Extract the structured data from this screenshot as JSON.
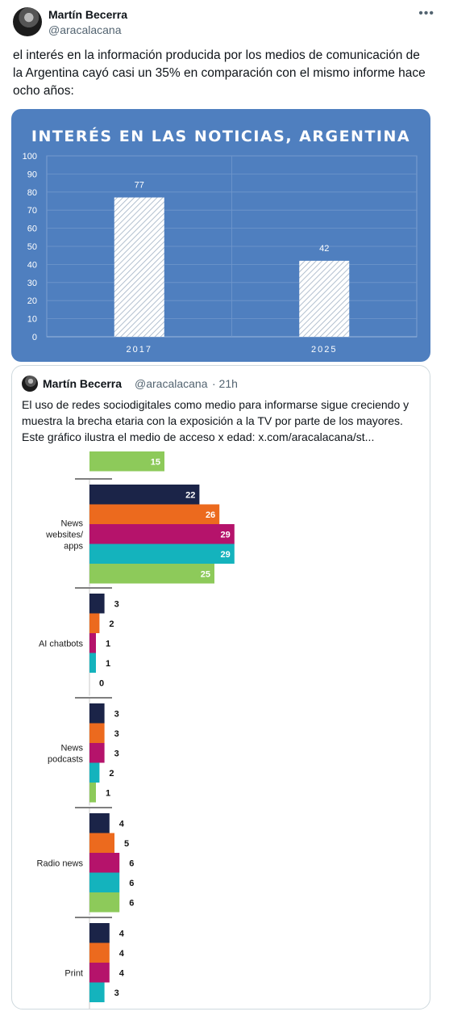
{
  "post": {
    "author_name": "Martín Becerra",
    "author_handle": "@aracalacana",
    "more_icon": "•••",
    "text": "el interés en la información producida por los medios de comunicación de la Argentina cayó casi un 35% en comparación con el mismo informe hace ocho años:"
  },
  "chart_data": {
    "type": "bar",
    "title": "INTERÉS EN LAS NOTICIAS, ARGENTINA",
    "categories": [
      "2017",
      "2025"
    ],
    "values": [
      77,
      42
    ],
    "ylim": [
      0,
      100
    ],
    "yticks": [
      0,
      10,
      20,
      30,
      40,
      50,
      60,
      70,
      80,
      90,
      100
    ],
    "grid": true,
    "colors": {
      "background": "#4f7fbf",
      "bar_fill": "#ffffff",
      "bar_hatch": "#9fb0c4"
    }
  },
  "quote": {
    "author_name": "Martín Becerra",
    "author_handle": "@aracalacana",
    "time": "· 21h",
    "text_lines": [
      "El uso de redes sociodigitales como medio para informarse sigue creciendo y",
      "muestra la brecha etaria con la exposición a la TV por parte de los mayores.",
      "Este gráfico ilustra el medio de acceso x edad:  x.com/aracalacana/st..."
    ],
    "image": {
      "colors": [
        "#1b2448",
        "#ec6a1e",
        "#b5136b",
        "#14b3bd",
        "#8dca5a"
      ],
      "top_partial": {
        "value": 15,
        "color_index": 4
      },
      "groups": [
        {
          "label_lines": [
            "News",
            "websites/",
            "apps"
          ],
          "values": [
            22,
            26,
            29,
            29,
            25
          ]
        },
        {
          "label_lines": [
            "AI chatbots"
          ],
          "values": [
            3,
            2,
            1,
            1,
            0
          ]
        },
        {
          "label_lines": [
            "News",
            "podcasts"
          ],
          "values": [
            3,
            3,
            3,
            2,
            1
          ]
        },
        {
          "label_lines": [
            "Radio news"
          ],
          "values": [
            4,
            5,
            6,
            6,
            6
          ]
        },
        {
          "label_lines": [
            "Print"
          ],
          "values": [
            4,
            4,
            4,
            3,
            null
          ]
        }
      ]
    }
  }
}
